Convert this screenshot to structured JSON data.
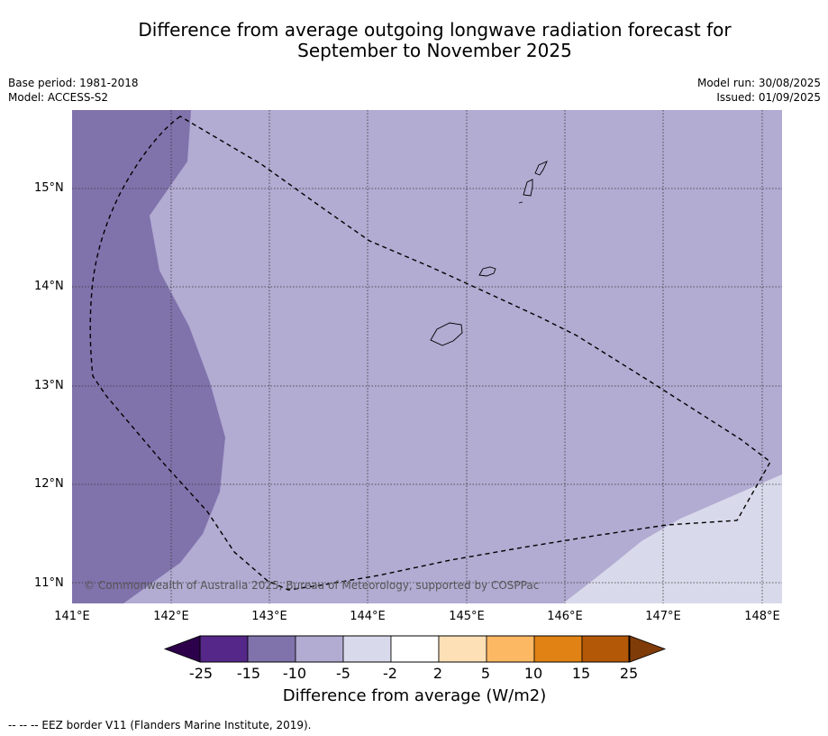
{
  "title_line1": "Difference from average outgoing longwave radiation forecast for",
  "title_line2": "September to November 2025",
  "meta_left": {
    "base_period": "Base period: 1981-2018",
    "model": "Model: ACCESS-S2"
  },
  "meta_right": {
    "model_run": "Model run: 30/08/2025",
    "issued": "Issued: 01/09/2025"
  },
  "map": {
    "lat_ticks": [
      "15°N",
      "14°N",
      "13°N",
      "12°N",
      "11°N"
    ],
    "lon_ticks": [
      "141°E",
      "142°E",
      "143°E",
      "144°E",
      "145°E",
      "146°E",
      "147°E",
      "148°E"
    ],
    "copyright": "© Commonwealth of Australia 2025, Bureau of Meteorology, supported by COSPPac",
    "colors": {
      "band_-15_-10": "#8073ac",
      "band_-10_-5": "#b2abd2",
      "band_-5_-2": "#d8daeb"
    }
  },
  "colorbar": {
    "labels": [
      "-25",
      "-15",
      "-10",
      "-5",
      "-2",
      "2",
      "5",
      "10",
      "15",
      "25"
    ],
    "colors": [
      "#2d004b",
      "#542788",
      "#8073ac",
      "#b2abd2",
      "#d8daeb",
      "#ffffff",
      "#fee0b6",
      "#fdb863",
      "#e08214",
      "#b35806",
      "#7f3b08"
    ],
    "title": "Difference from average (W/m2)"
  },
  "footnote": "--  --  -- EEZ border V11 (Flanders Marine Institute, 2019)."
}
